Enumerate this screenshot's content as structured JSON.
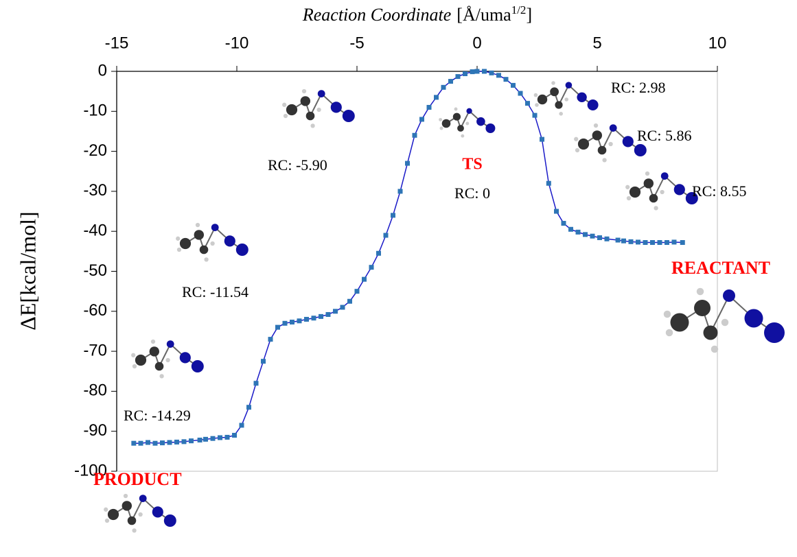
{
  "chart_data": {
    "type": "line",
    "x_label": "Reaction Coordinate",
    "x_label_unit": "[Å/uma",
    "x_label_sup": "1/2",
    "x_label_end": "]",
    "y_label": "ΔE[kcal/mol]",
    "xlim": [
      -15,
      10
    ],
    "xticks": [
      -15,
      -10,
      -5,
      0,
      5,
      10
    ],
    "ylim": [
      -100,
      0
    ],
    "yticks": [
      -100,
      -90,
      -80,
      -70,
      -60,
      -50,
      -40,
      -30,
      -20,
      -10,
      0
    ],
    "series": [
      {
        "color": "#2e75b6",
        "line_color": "#1a1ac8",
        "x": [
          -14.29,
          -14.0,
          -13.7,
          -13.4,
          -13.1,
          -12.8,
          -12.5,
          -12.2,
          -11.9,
          -11.54,
          -11.3,
          -11.0,
          -10.7,
          -10.4,
          -10.1,
          -9.8,
          -9.5,
          -9.2,
          -8.9,
          -8.6,
          -8.3,
          -8.0,
          -7.7,
          -7.4,
          -7.1,
          -6.8,
          -6.5,
          -6.2,
          -5.9,
          -5.6,
          -5.3,
          -5.0,
          -4.7,
          -4.4,
          -4.1,
          -3.8,
          -3.5,
          -3.2,
          -2.9,
          -2.6,
          -2.3,
          -2.0,
          -1.7,
          -1.4,
          -1.1,
          -0.8,
          -0.5,
          -0.2,
          0,
          0.3,
          0.6,
          0.9,
          1.2,
          1.5,
          1.8,
          2.1,
          2.4,
          2.7,
          2.98,
          3.3,
          3.6,
          3.9,
          4.2,
          4.5,
          4.8,
          5.1,
          5.4,
          5.86,
          6.1,
          6.4,
          6.7,
          7.0,
          7.3,
          7.6,
          7.9,
          8.2,
          8.55
        ],
        "values": [
          -93,
          -93,
          -92.8,
          -93,
          -92.9,
          -92.8,
          -92.7,
          -92.6,
          -92.4,
          -92.2,
          -92,
          -91.8,
          -91.6,
          -91.5,
          -91,
          -88.5,
          -84,
          -78,
          -72.5,
          -67,
          -64,
          -63,
          -62.7,
          -62.4,
          -62,
          -61.7,
          -61.3,
          -60.8,
          -60,
          -59,
          -57.5,
          -55,
          -52,
          -49,
          -45.5,
          -41,
          -36,
          -30,
          -23,
          -16,
          -12,
          -9,
          -6.5,
          -4,
          -2.5,
          -1.3,
          -0.6,
          -0.1,
          0,
          0,
          -0.4,
          -1,
          -2,
          -3.5,
          -5.5,
          -8,
          -11,
          -17,
          -28,
          -35,
          -38,
          -39.5,
          -40.2,
          -40.8,
          -41.2,
          -41.6,
          -41.9,
          -42.2,
          -42.4,
          -42.6,
          -42.7,
          -42.8,
          -42.8,
          -42.8,
          -42.8,
          -42.7,
          -42.8
        ]
      }
    ],
    "annotations": [
      {
        "text": "RC: -14.29"
      },
      {
        "text": "RC: -11.54"
      },
      {
        "text": "RC: -5.90"
      },
      {
        "text": "TS",
        "color": "#ff0000"
      },
      {
        "text": "RC: 0"
      },
      {
        "text": "RC: 2.98"
      },
      {
        "text": "RC: 5.86"
      },
      {
        "text": "RC: 8.55"
      },
      {
        "text": "REACTANT",
        "color": "#ff0000"
      },
      {
        "text": "PRODUCT",
        "color": "#ff0000"
      }
    ]
  }
}
